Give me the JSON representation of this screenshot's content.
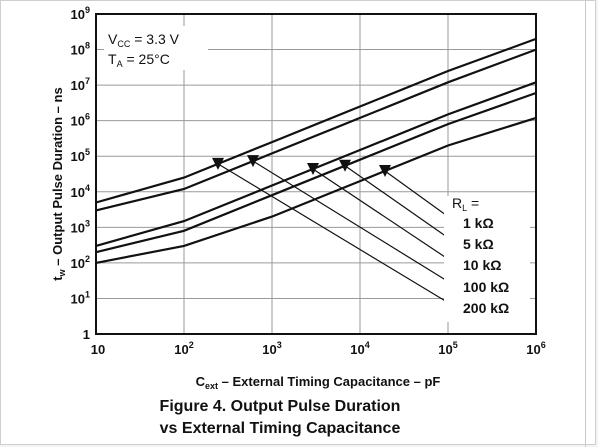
{
  "chart_data": {
    "type": "line",
    "title": "Figure 4. Output Pulse Duration",
    "subtitle": "vs External Timing Capacitance",
    "xlabel": {
      "main": "C",
      "sub": "ext",
      "rest": " – External Timing Capacitance – pF"
    },
    "ylabel": {
      "main": "t",
      "sub": "w",
      "rest": " – Output Pulse Duration – ns"
    },
    "x_scale": "log",
    "y_scale": "log",
    "xlim": [
      10,
      1000000
    ],
    "ylim": [
      1,
      1000000000
    ],
    "grid": true,
    "x_ticks": [
      {
        "base": "10",
        "exp": ""
      },
      {
        "base": "10",
        "exp": "2"
      },
      {
        "base": "10",
        "exp": "3"
      },
      {
        "base": "10",
        "exp": "4"
      },
      {
        "base": "10",
        "exp": "5"
      },
      {
        "base": "10",
        "exp": "6"
      }
    ],
    "y_ticks": [
      {
        "base": "1",
        "exp": ""
      },
      {
        "base": "10",
        "exp": "1"
      },
      {
        "base": "10",
        "exp": "2"
      },
      {
        "base": "10",
        "exp": "3"
      },
      {
        "base": "10",
        "exp": "4"
      },
      {
        "base": "10",
        "exp": "5"
      },
      {
        "base": "10",
        "exp": "6"
      },
      {
        "base": "10",
        "exp": "7"
      },
      {
        "base": "10",
        "exp": "8"
      },
      {
        "base": "10",
        "exp": "9"
      }
    ],
    "conditions": [
      {
        "main": "V",
        "sub": "CC",
        "rest": " = 3.3 V"
      },
      {
        "main": "T",
        "sub": "A",
        "rest": " = 25°C"
      }
    ],
    "legend_title": {
      "main": "R",
      "sub": "L",
      "rest": " ="
    },
    "series": [
      {
        "name": "1 kΩ",
        "points": [
          [
            10,
            100
          ],
          [
            100,
            300
          ],
          [
            1000,
            2000
          ],
          [
            10000,
            20000
          ],
          [
            100000,
            200000
          ],
          [
            1000000,
            1200000
          ]
        ]
      },
      {
        "name": "5 kΩ",
        "points": [
          [
            10,
            200
          ],
          [
            100,
            800
          ],
          [
            1000,
            8000
          ],
          [
            10000,
            80000
          ],
          [
            100000,
            800000
          ],
          [
            1000000,
            6000000
          ]
        ]
      },
      {
        "name": "10 kΩ",
        "points": [
          [
            10,
            300
          ],
          [
            100,
            1500
          ],
          [
            1000,
            15000
          ],
          [
            10000,
            150000
          ],
          [
            100000,
            1500000
          ],
          [
            1000000,
            12000000
          ]
        ]
      },
      {
        "name": "100 kΩ",
        "points": [
          [
            10,
            3000
          ],
          [
            100,
            12000
          ],
          [
            1000,
            120000
          ],
          [
            10000,
            1200000
          ],
          [
            100000,
            12000000
          ],
          [
            1000000,
            100000000
          ]
        ]
      },
      {
        "name": "200 kΩ",
        "points": [
          [
            10,
            5000
          ],
          [
            100,
            25000
          ],
          [
            1000,
            250000
          ],
          [
            10000,
            2500000
          ],
          [
            100000,
            25000000
          ],
          [
            1000000,
            200000000
          ]
        ]
      }
    ]
  }
}
